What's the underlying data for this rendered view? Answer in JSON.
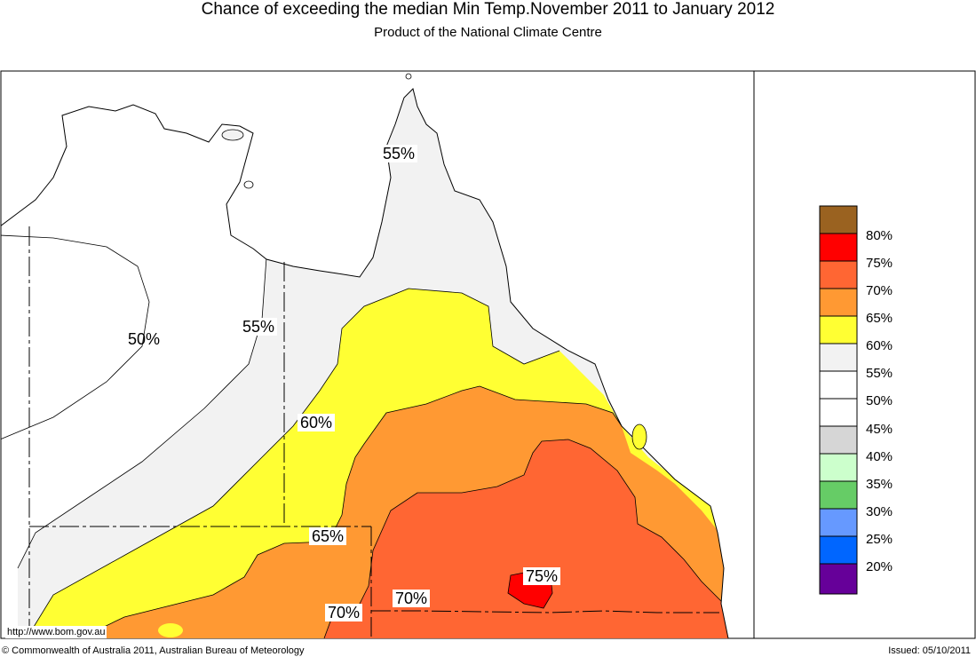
{
  "header": {
    "title": "Chance of exceeding the median Min Temp.November 2011 to January 2012",
    "subtitle": "Product of the National Climate Centre"
  },
  "legend": {
    "items": [
      {
        "label": "80%",
        "color": "#9a6220"
      },
      {
        "label": "75%",
        "color": "#ff0000"
      },
      {
        "label": "70%",
        "color": "#ff6633"
      },
      {
        "label": "65%",
        "color": "#ff9933"
      },
      {
        "label": "60%",
        "color": "#ffff33"
      },
      {
        "label": "55%",
        "color": "#f2f2f2"
      },
      {
        "label": "50%",
        "color": "#ffffff"
      },
      {
        "label": "45%",
        "color": "#ffffff"
      },
      {
        "label": "40%",
        "color": "#d6d6d6"
      },
      {
        "label": "35%",
        "color": "#ccffcc"
      },
      {
        "label": "30%",
        "color": "#66cc66"
      },
      {
        "label": "25%",
        "color": "#6699ff"
      },
      {
        "label": "20%",
        "color": "#0066ff"
      },
      {
        "label": "",
        "color": "#660099"
      }
    ]
  },
  "map_labels": {
    "l55_north": "55%",
    "l50": "50%",
    "l55_west": "55%",
    "l60": "60%",
    "l65": "65%",
    "l70_a": "70%",
    "l70_b": "70%",
    "l75": "75%"
  },
  "footer": {
    "url": "http://www.bom.gov.au",
    "copyright": "© Commonwealth of Australia 2011, Australian Bureau of Meteorology",
    "issued": "Issued: 05/10/2011"
  }
}
